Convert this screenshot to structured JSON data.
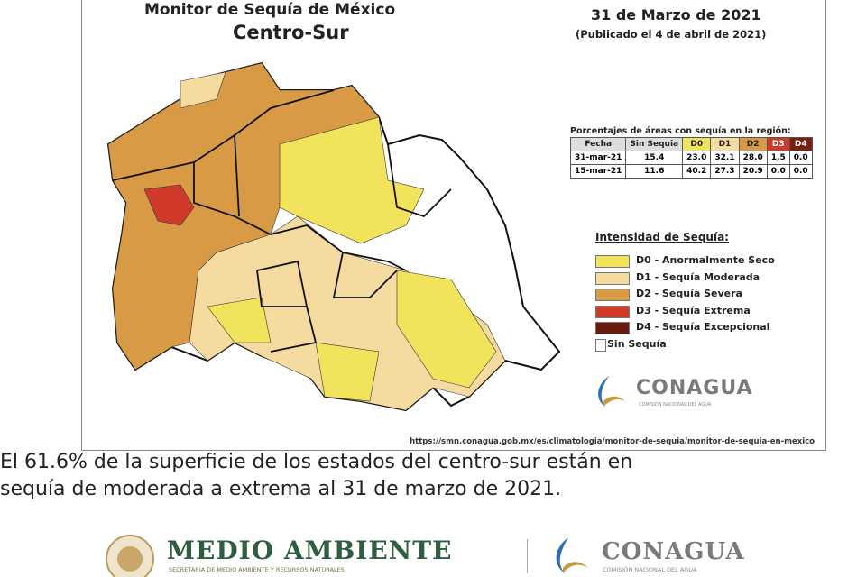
{
  "header": {
    "title": "Monitor de Sequía de México",
    "region": "Centro-Sur",
    "date": "31 de Marzo de 2021",
    "published": "(Publicado el 4 de abril de 2021)"
  },
  "table": {
    "caption": "Porcentajes de áreas con sequía en la región:",
    "columns": [
      "Fecha",
      "Sin Sequia",
      "D0",
      "D1",
      "D2",
      "D3",
      "D4"
    ],
    "rows": [
      [
        "31-mar-21",
        "15.4",
        "23.0",
        "32.1",
        "28.0",
        "1.5",
        "0.0"
      ],
      [
        "15-mar-21",
        "11.6",
        "40.2",
        "27.3",
        "20.9",
        "0.0",
        "0.0"
      ]
    ]
  },
  "legend": {
    "title": "Intensidad de Sequía:",
    "items": [
      "D0 - Anormalmente Seco",
      "D1 - Sequía Moderada",
      "D2 - Sequía Severa",
      "D3 - Sequía Extrema",
      "D4 - Sequía Excepcional",
      "Sin Sequía"
    ]
  },
  "logo": {
    "name": "CONAGUA",
    "tagline": "COMISIÓN NACIONAL DEL AGUA"
  },
  "source_url": "https://smn.conagua.gob.mx/es/climatologia/monitor-de-sequia/monitor-de-sequia-en-mexico",
  "caption": [
    "El 61.6% de la superficie de los estados del centro-sur están en",
    "sequía de moderada a extrema al 31 de marzo de 2021."
  ],
  "footer": {
    "ministry": "MEDIO AMBIENTE",
    "ministry_subtitle": "SECRETARÍA DE MEDIO AMBIENTE Y RECURSOS NATURALES",
    "agency": "CONAGUA",
    "agency_subtitle": "COMISIÓN NACIONAL DEL AGUA"
  }
}
